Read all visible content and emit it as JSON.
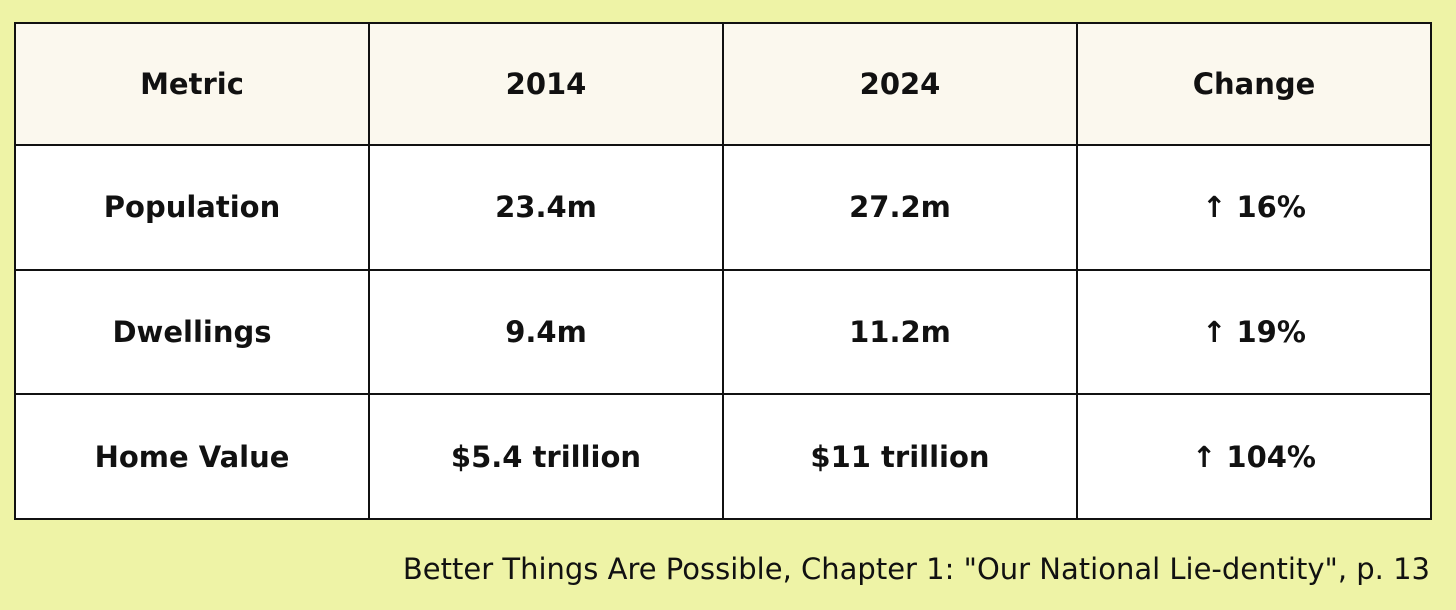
{
  "table": {
    "header": [
      "Metric",
      "2014",
      "2024",
      "Change"
    ],
    "rows": [
      [
        "Population",
        "23.4m",
        "27.2m",
        "↑ 16%"
      ],
      [
        "Dwellings",
        "9.4m",
        "11.2m",
        "↑ 19%"
      ],
      [
        "Home Value",
        "$5.4 trillion",
        "$11 trillion",
        "↑ 104%"
      ]
    ]
  },
  "caption": "Better Things Are Possible, Chapter 1: \"Our National Lie-dentity\", p. 13"
}
